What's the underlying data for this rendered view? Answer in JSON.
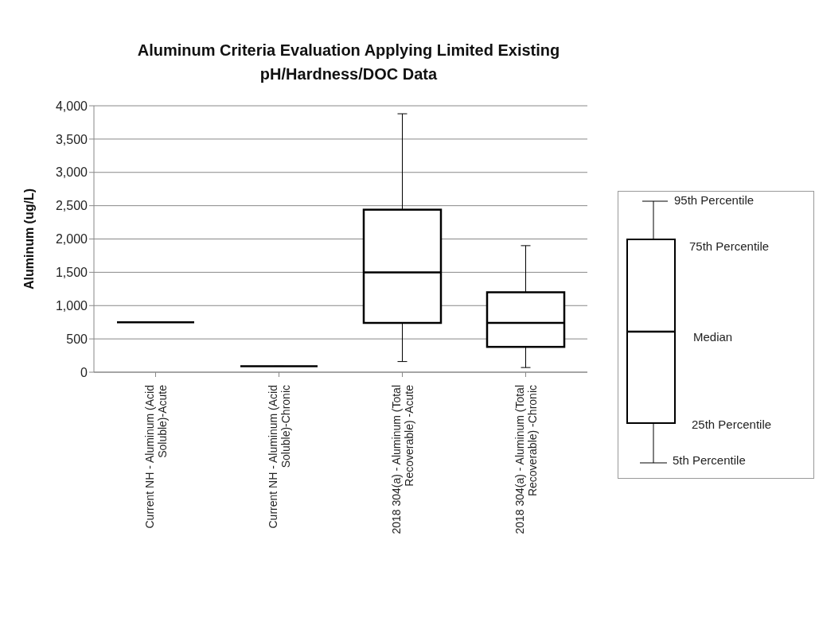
{
  "chart_data": {
    "type": "box",
    "title": "Aluminum Criteria Evaluation Applying Limited Existing pH/Hardness/DOC Data",
    "ylabel": "Aluminum (ug/L)",
    "categories": [
      "Current NH - Aluminum (Acid Soluble)-Acute",
      "Current NH - Aluminum (Acid Soluble)-Chronic",
      "2018 304(a) - Aluminum (Total Recoverable) -Acute",
      "2018 304(a) - Aluminum (Total Recoverable) -Chronic"
    ],
    "boxes": [
      {
        "low": 750,
        "q1": 750,
        "median": 750,
        "q3": 750,
        "high": 750
      },
      {
        "low": 90,
        "q1": 90,
        "median": 90,
        "q3": 90,
        "high": 90
      },
      {
        "low": 160,
        "q1": 740,
        "median": 1500,
        "q3": 2440,
        "high": 3880
      },
      {
        "low": 70,
        "q1": 380,
        "median": 740,
        "q3": 1200,
        "high": 1900
      }
    ],
    "ylim": [
      0,
      4000
    ],
    "yticks": [
      0,
      500,
      {
        "value": 1000,
        "label": "1,000"
      },
      {
        "value": 1500,
        "label": "1,500"
      },
      {
        "value": 2000,
        "label": "2,000"
      },
      {
        "value": 2500,
        "label": "2,500"
      },
      {
        "value": 3000,
        "label": "3,000"
      },
      {
        "value": 3500,
        "label": "3,500"
      },
      {
        "value": 4000,
        "label": "4,000"
      }
    ],
    "grid": "y",
    "annotations": [
      "95th Percentile",
      "75th Percentile",
      "Median",
      "25th Percentile",
      "5th Percentile"
    ]
  }
}
